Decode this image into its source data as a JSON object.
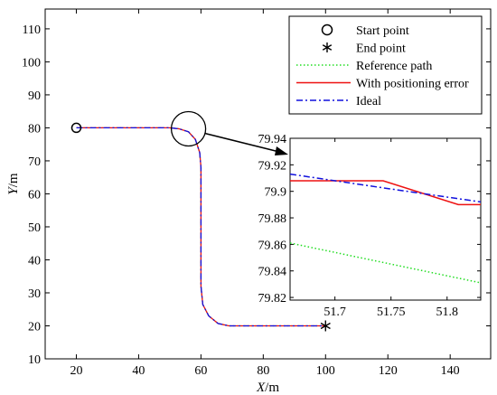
{
  "chart_data": [
    {
      "type": "line",
      "panel": "main",
      "xlabel": "X/m",
      "ylabel": "Y/m",
      "xlim": [
        10,
        153
      ],
      "ylim": [
        10,
        116
      ],
      "xticks": [
        20,
        40,
        60,
        80,
        100,
        120,
        140
      ],
      "yticks": [
        10,
        20,
        30,
        40,
        50,
        60,
        70,
        80,
        90,
        100,
        110
      ],
      "grid": false,
      "legend_position": "top-right",
      "legend": [
        {
          "label": "Start point",
          "marker": "circle"
        },
        {
          "label": "End point",
          "marker": "asterisk"
        },
        {
          "label": "Reference path",
          "style": "dotted",
          "color": "#22dd22"
        },
        {
          "label": "With positioning error",
          "style": "solid",
          "color": "#ee1111"
        },
        {
          "label": "Ideal",
          "style": "dashdot",
          "color": "#1111dd"
        }
      ],
      "start_point": {
        "x": 20,
        "y": 80
      },
      "end_point": {
        "x": 100,
        "y": 20
      },
      "zoom_circle_center": {
        "x": 56,
        "y": 79.7
      },
      "series": [
        {
          "name": "Reference path",
          "color": "#22dd22",
          "style": "dotted",
          "points": [
            [
              20,
              80
            ],
            [
              50,
              80
            ],
            [
              53,
              79.7
            ],
            [
              56,
              78.8
            ],
            [
              58.2,
              76.5
            ],
            [
              59.6,
              72.5
            ],
            [
              60,
              68
            ],
            [
              60,
              32
            ],
            [
              60.6,
              26.5
            ],
            [
              62.5,
              23
            ],
            [
              65.5,
              20.7
            ],
            [
              69,
              20
            ],
            [
              100,
              20
            ]
          ]
        },
        {
          "name": "With positioning error",
          "color": "#ee1111",
          "style": "solid",
          "points": [
            [
              20,
              80
            ],
            [
              50,
              80
            ],
            [
              53,
              79.7
            ],
            [
              56,
              78.8
            ],
            [
              58.2,
              76.5
            ],
            [
              59.6,
              72.5
            ],
            [
              60,
              68
            ],
            [
              60,
              32
            ],
            [
              60.6,
              26.5
            ],
            [
              62.5,
              23
            ],
            [
              65.5,
              20.7
            ],
            [
              69,
              20
            ],
            [
              100,
              20
            ]
          ]
        },
        {
          "name": "Ideal",
          "color": "#1111dd",
          "style": "dashdot",
          "points": [
            [
              20,
              80
            ],
            [
              50,
              80
            ],
            [
              53,
              79.7
            ],
            [
              56,
              78.8
            ],
            [
              58.2,
              76.5
            ],
            [
              59.6,
              72.5
            ],
            [
              60,
              68
            ],
            [
              60,
              32
            ],
            [
              60.6,
              26.5
            ],
            [
              62.5,
              23
            ],
            [
              65.5,
              20.7
            ],
            [
              69,
              20
            ],
            [
              100,
              20
            ]
          ]
        }
      ]
    },
    {
      "type": "line",
      "panel": "inset",
      "xlim": [
        51.66,
        51.83
      ],
      "ylim": [
        79.818,
        79.94
      ],
      "xticks": [
        51.7,
        51.75,
        51.8
      ],
      "yticks": [
        79.82,
        79.84,
        79.86,
        79.88,
        79.9,
        79.92,
        79.94
      ],
      "xtick_labels": [
        "51.7",
        "51.75",
        "51.8"
      ],
      "ytick_labels": [
        "79.82",
        "79.84",
        "79.86",
        "79.88",
        "79.9",
        "79.92",
        "79.94"
      ],
      "series": [
        {
          "name": "Reference path",
          "color": "#22dd22",
          "style": "dotted",
          "points": [
            [
              51.66,
              79.861
            ],
            [
              51.83,
              79.831
            ]
          ]
        },
        {
          "name": "With positioning error",
          "color": "#ee1111",
          "style": "solid",
          "points": [
            [
              51.66,
              79.908
            ],
            [
              51.743,
              79.908
            ],
            [
              51.81,
              79.89
            ],
            [
              51.83,
              79.89
            ]
          ]
        },
        {
          "name": "Ideal",
          "color": "#1111dd",
          "style": "dashdot",
          "points": [
            [
              51.66,
              79.913
            ],
            [
              51.74,
              79.903
            ],
            [
              51.83,
              79.892
            ]
          ]
        }
      ]
    }
  ]
}
